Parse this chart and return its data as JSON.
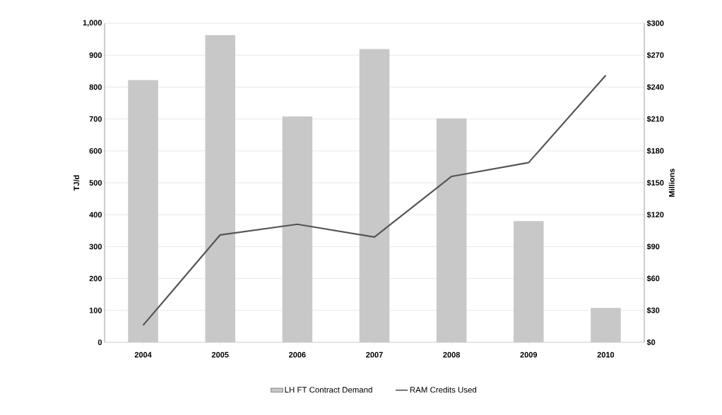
{
  "chart_data": {
    "type": "bar",
    "categories": [
      "2004",
      "2005",
      "2006",
      "2007",
      "2008",
      "2009",
      "2010"
    ],
    "series": [
      {
        "name": "LH FT Contract Demand",
        "color": "#c8c8c8",
        "values": [
          822,
          963,
          708,
          919,
          702,
          380,
          108
        ]
      },
      {
        "name": "RAM Credits Used",
        "type": "line",
        "axis": "y2",
        "color": "#555555",
        "values": [
          16,
          101,
          111,
          99,
          156,
          169,
          251
        ]
      }
    ],
    "ylabel": "TJ/d",
    "y2label": "Millions",
    "ylim": [
      0,
      1000
    ],
    "yticks": [
      0,
      100,
      200,
      300,
      400,
      500,
      600,
      700,
      800,
      900,
      {
        "value": 1000,
        "label": "1,000"
      }
    ],
    "y2lim": [
      0,
      300
    ],
    "y2ticks": [
      {
        "value": 0,
        "label": "$0"
      },
      {
        "value": 30,
        "label": "$30"
      },
      {
        "value": 60,
        "label": "$60"
      },
      {
        "value": 90,
        "label": "$90"
      },
      {
        "value": 120,
        "label": "$120"
      },
      {
        "value": 150,
        "label": "$150"
      },
      {
        "value": 180,
        "label": "$180"
      },
      {
        "value": 210,
        "label": "$210"
      },
      {
        "value": 240,
        "label": "$240"
      },
      {
        "value": 270,
        "label": "$270"
      },
      {
        "value": 300,
        "label": "$300"
      }
    ],
    "grid": "y",
    "legend": "bottom"
  }
}
